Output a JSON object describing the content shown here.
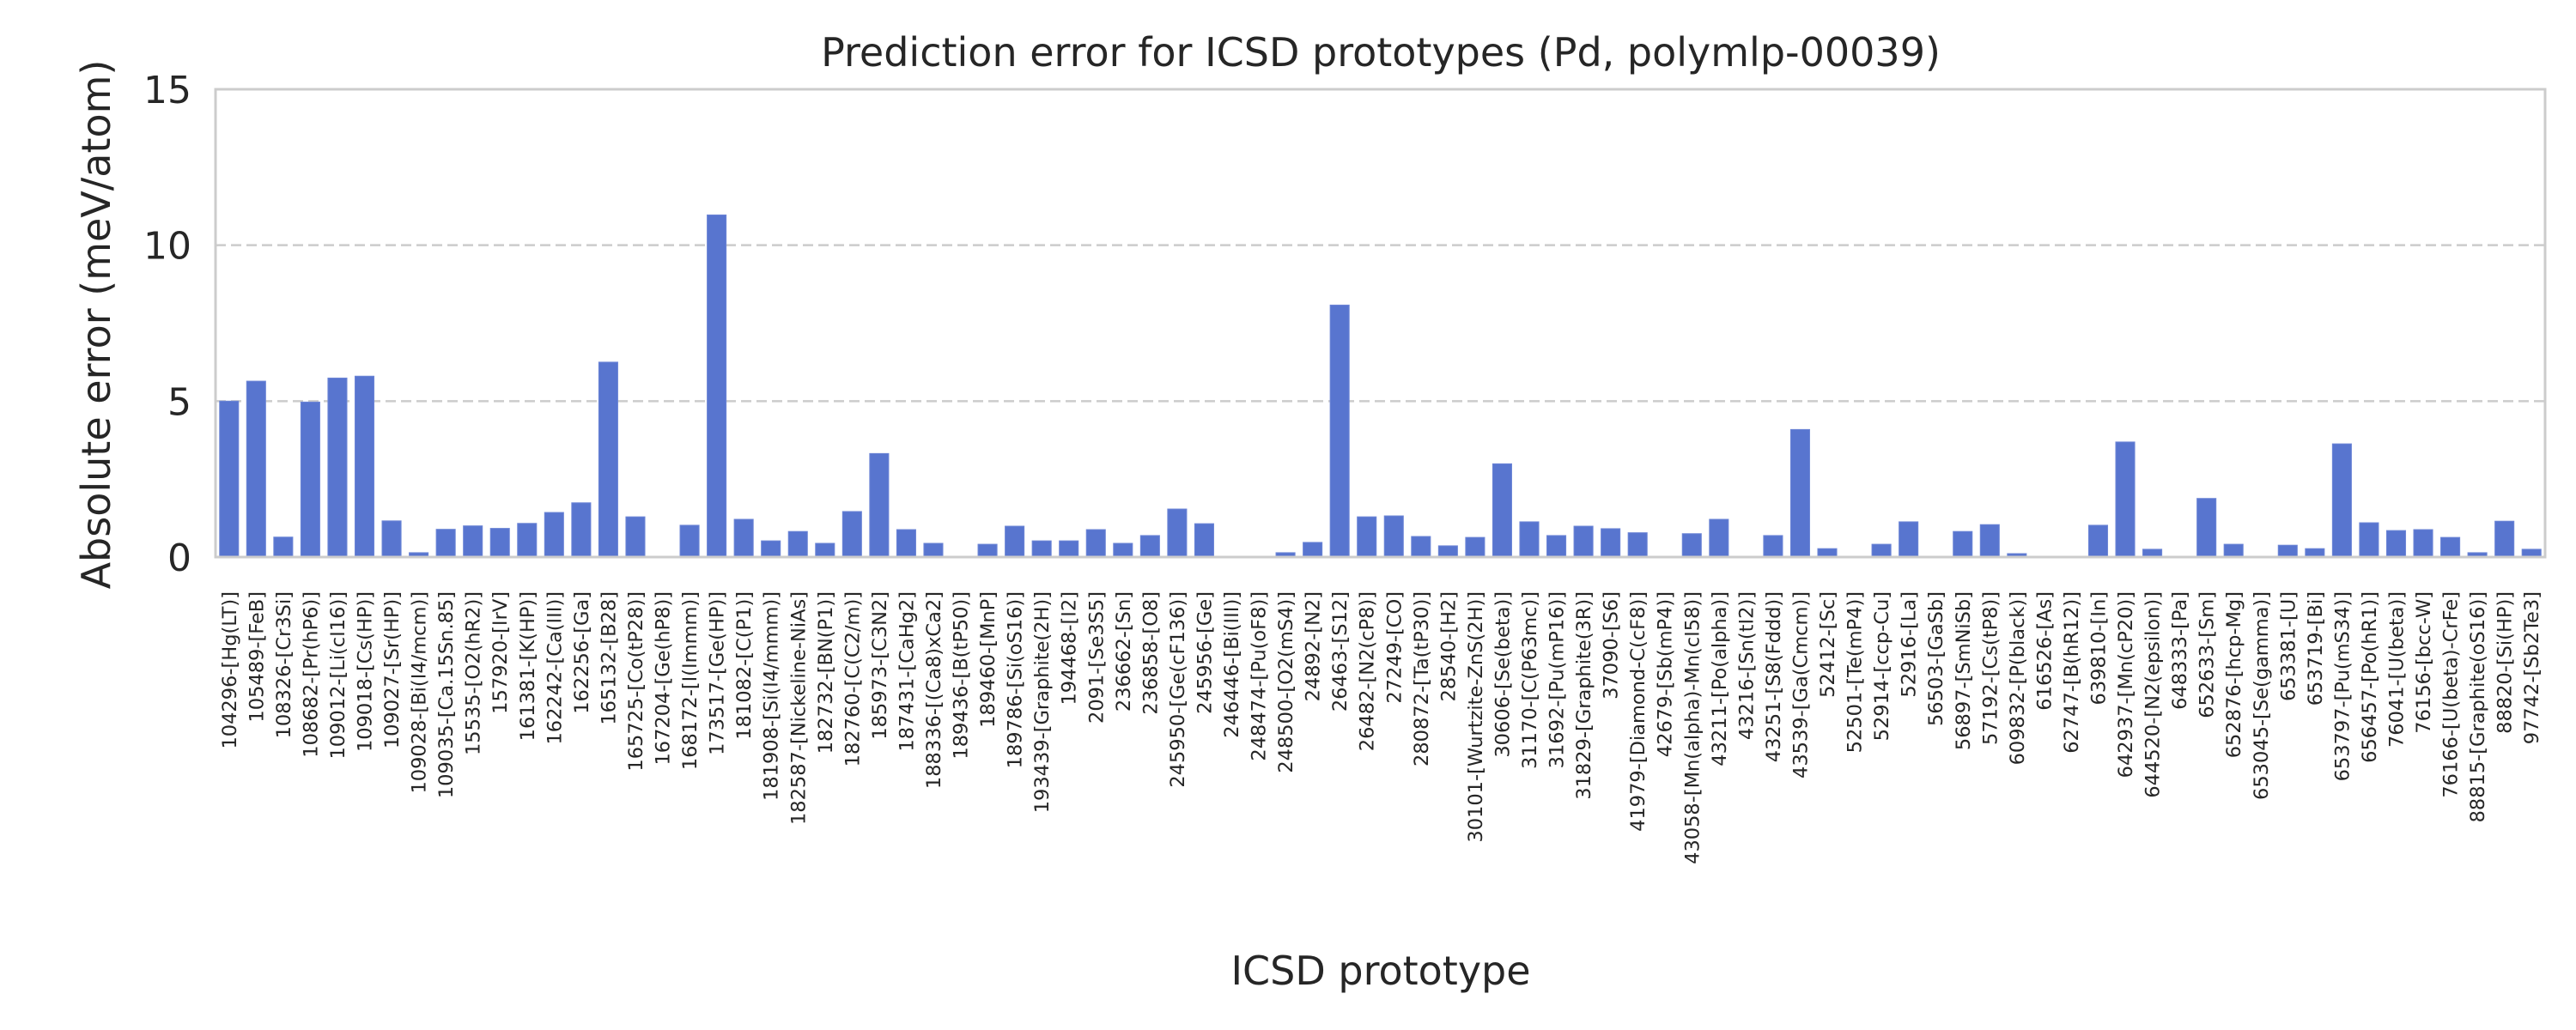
{
  "chart_data": {
    "type": "bar",
    "title": "Prediction error for ICSD prototypes (Pd, polymlp-00039)",
    "xlabel": "ICSD prototype",
    "ylabel": "Absolute error (meV/atom)",
    "ylim": [
      0,
      15
    ],
    "yticks": [
      0,
      5,
      10,
      15
    ],
    "ytick_labels": [
      "0",
      "5",
      "10",
      "15"
    ],
    "grid": "y, dashed",
    "bar_color": "#5875cf",
    "grid_color": "#cccccc",
    "categories": [
      "104296-[Hg(LT)]",
      "105489-[FeB]",
      "108326-[Cr3Si]",
      "108682-[Pr(hP6)]",
      "109012-[Li(cI16)]",
      "109018-[Cs(HP)]",
      "109027-[Sr(HP)]",
      "109028-[Bi(I4/mcm)]",
      "109035-[Ca.15Sn.85]",
      "15535-[O2(hR2)]",
      "157920-[IrV]",
      "161381-[K(HP)]",
      "162242-[Ca(III)]",
      "162256-[Ga]",
      "165132-[B28]",
      "165725-[Co(tP28)]",
      "167204-[Ge(hP8)]",
      "168172-[I(Immm)]",
      "173517-[Ge(HP)]",
      "181082-[C(P1)]",
      "181908-[Si(I4/mmm)]",
      "182587-[Nickeline-NiAs]",
      "182732-[BN(P1)]",
      "182760-[C(C2/m)]",
      "185973-[C3N2]",
      "187431-[CaHg2]",
      "188336-[(Ca8)xCa2]",
      "189436-[B(tP50)]",
      "189460-[MnP]",
      "189786-[Si(oS16)]",
      "193439-[Graphite(2H)]",
      "194468-[I2]",
      "2091-[Se3S5]",
      "236662-[Sn]",
      "236858-[O8]",
      "245950-[Ge(cF136)]",
      "245956-[Ge]",
      "246446-[Bi(III)]",
      "248474-[Pu(oF8)]",
      "248500-[O2(mS4)]",
      "24892-[N2]",
      "26463-[S12]",
      "26482-[N2(cP8)]",
      "27249-[CO]",
      "280872-[Ta(tP30)]",
      "28540-[H2]",
      "30101-[Wurtzite-ZnS(2H)]",
      "30606-[Se(beta)]",
      "31170-[C(P63mc)]",
      "31692-[Pu(mP16)]",
      "31829-[Graphite(3R)]",
      "37090-[S6]",
      "41979-[Diamond-C(cF8)]",
      "42679-[Sb(mP4)]",
      "43058-[Mn(alpha)-Mn(cI58)]",
      "43211-[Po(alpha)]",
      "43216-[Sn(tI2)]",
      "43251-[S8(Fddd)]",
      "43539-[Ga(Cmcm)]",
      "52412-[Sc]",
      "52501-[Te(mP4)]",
      "52914-[ccp-Cu]",
      "52916-[La]",
      "56503-[GaSb]",
      "56897-[SmNiSb]",
      "57192-[Cs(tP8)]",
      "609832-[P(black)]",
      "616526-[As]",
      "62747-[B(hR12)]",
      "639810-[In]",
      "642937-[Mn(cP20)]",
      "644520-[N2(epsilon)]",
      "648333-[Pa]",
      "652633-[Sm]",
      "652876-[hcp-Mg]",
      "653045-[Se(gamma)]",
      "653381-[U]",
      "653719-[Bi]",
      "653797-[Pu(mS34)]",
      "656457-[Po(hR1)]",
      "76041-[U(beta)]",
      "76156-[bcc-W]",
      "76166-[U(beta)-CrFe]",
      "88815-[Graphite(oS16)]",
      "88820-[Si(HP)]",
      "97742-[Sb2Te3]"
    ],
    "values": [
      5.0,
      5.64,
      0.64,
      4.97,
      5.74,
      5.8,
      1.16,
      0.14,
      0.89,
      1.0,
      0.92,
      1.08,
      1.43,
      1.74,
      6.25,
      1.29,
      0.0,
      1.02,
      10.97,
      1.21,
      0.52,
      0.82,
      0.44,
      1.46,
      3.32,
      0.88,
      0.44,
      0.0,
      0.41,
      0.99,
      0.52,
      0.52,
      0.88,
      0.44,
      0.69,
      1.54,
      1.07,
      0.0,
      0.0,
      0.14,
      0.47,
      8.08,
      1.29,
      1.32,
      0.66,
      0.36,
      0.63,
      2.99,
      1.13,
      0.69,
      0.99,
      0.91,
      0.78,
      0.0,
      0.75,
      1.21,
      0.0,
      0.69,
      4.09,
      0.27,
      0.0,
      0.41,
      1.13,
      0.0,
      0.82,
      1.04,
      0.11,
      0.0,
      0.0,
      1.02,
      3.69,
      0.25,
      0.0,
      1.88,
      0.41,
      0.0,
      0.38,
      0.27,
      3.63,
      1.1,
      0.85,
      0.88,
      0.63,
      0.14,
      1.15,
      0.25
    ]
  }
}
